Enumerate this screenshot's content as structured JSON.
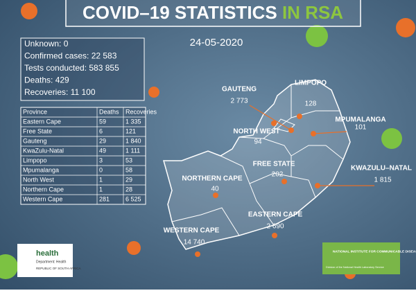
{
  "header": {
    "title": "COVID–19 STATISTICS",
    "title_highlight": "IN RSA",
    "date": "24-05-2020"
  },
  "summary": [
    "Unknown: 0",
    "Confirmed cases: 22 583",
    "Tests conducted: 583 855",
    "Deaths: 429",
    "Recoveries:  11 100"
  ],
  "table": {
    "columns": [
      "Province",
      "Deaths",
      "Recoveries"
    ],
    "rows": [
      [
        "Eastern Cape",
        "59",
        "1 335"
      ],
      [
        "Free State",
        "6",
        "121"
      ],
      [
        "Gauteng",
        "29",
        "1 840"
      ],
      [
        "KwaZulu-Natal",
        "49",
        "1 111"
      ],
      [
        "Limpopo",
        "3",
        "53"
      ],
      [
        "Mpumalanga",
        "0",
        "58"
      ],
      [
        "North West",
        "1",
        "29"
      ],
      [
        "Northern Cape",
        "1",
        "28"
      ],
      [
        "Western Cape",
        "281",
        "6 525"
      ]
    ]
  },
  "map": {
    "provinces": [
      {
        "name": "GAUTENG",
        "cases": "2 773"
      },
      {
        "name": "LIMPOPO",
        "cases": "128"
      },
      {
        "name": "MPUMALANGA",
        "cases": "101"
      },
      {
        "name": "NORTH WEST",
        "cases": "94"
      },
      {
        "name": "FREE STATE",
        "cases": "202"
      },
      {
        "name": "KWAZULU–NATAL",
        "cases": "1 815"
      },
      {
        "name": "NORTHERN CAPE",
        "cases": "40"
      },
      {
        "name": "EASTERN CAPE",
        "cases": "2 690"
      },
      {
        "name": "WESTERN CAPE",
        "cases": "14 740"
      }
    ]
  },
  "logos": {
    "health": {
      "name": "health",
      "dept": "Department: Health",
      "country": "REPUBLIC OF SOUTH AFRICA"
    },
    "nicd": {
      "name": "NATIONAL INSTITUTE FOR COMMUNICABLE DISEASES",
      "sub": "Division of the National Health Laboratory Service"
    }
  }
}
